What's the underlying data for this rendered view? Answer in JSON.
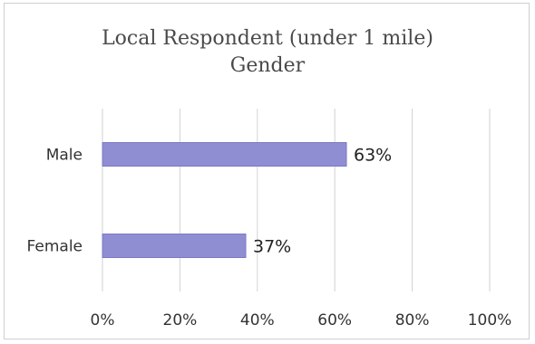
{
  "chart_data": {
    "type": "bar",
    "orientation": "horizontal",
    "title": "Local Respondent (under 1 mile)",
    "subtitle": "Gender",
    "categories": [
      "Male",
      "Female"
    ],
    "values": [
      63,
      37
    ],
    "value_labels": [
      "63%",
      "37%"
    ],
    "xlim": [
      0,
      100
    ],
    "x_ticks": [
      0,
      20,
      40,
      60,
      80,
      100
    ],
    "x_tick_labels": [
      "0%",
      "20%",
      "40%",
      "60%",
      "80%",
      "100%"
    ],
    "grid": true,
    "legend": "none",
    "colors": {
      "bar": "#8f8ed2",
      "bar_edge": "#7a79c4",
      "grid": "#d2d2d2"
    }
  }
}
